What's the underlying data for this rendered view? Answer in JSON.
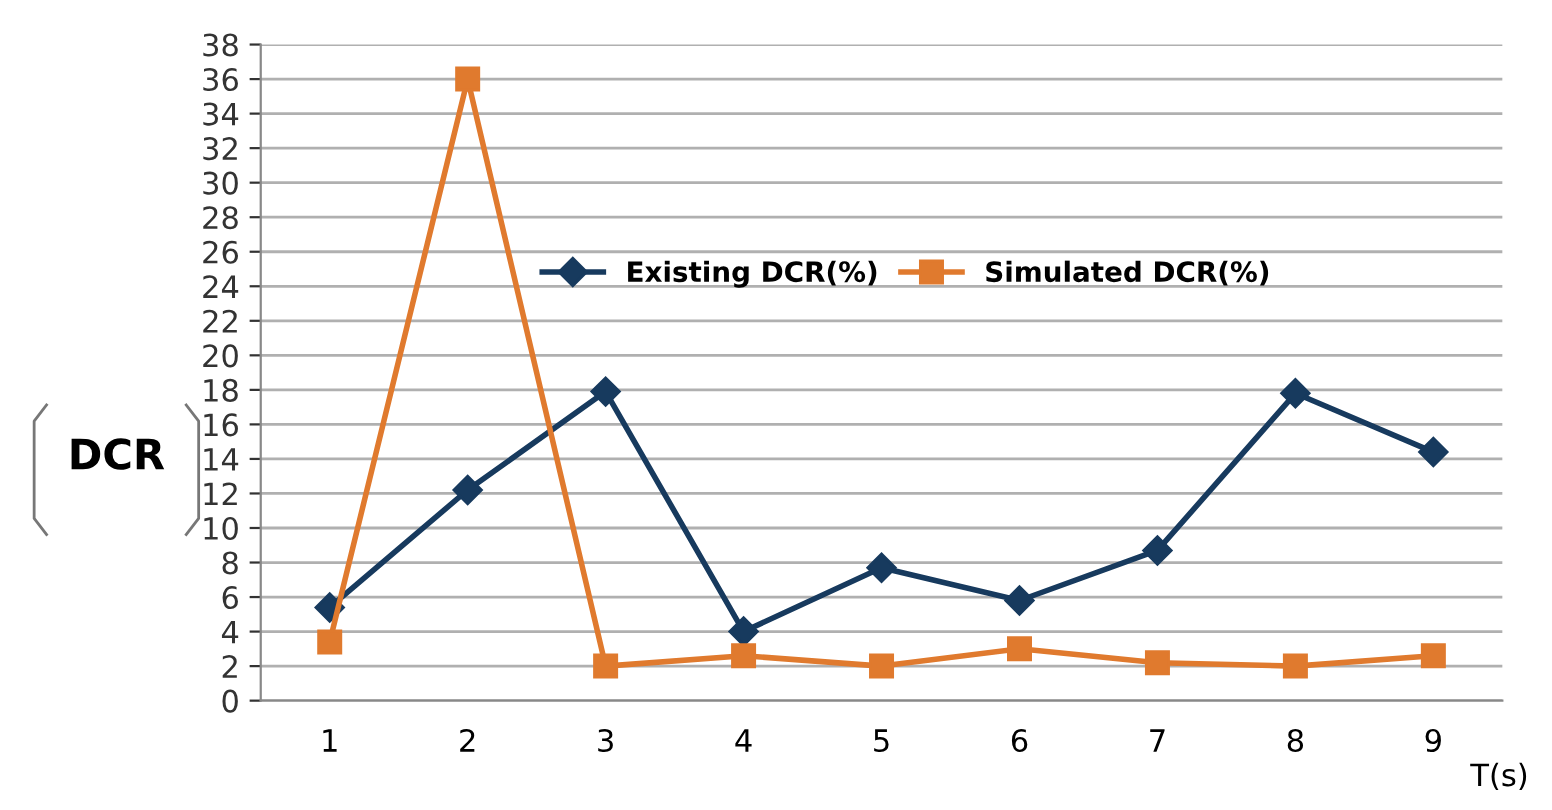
{
  "chart_data": {
    "type": "line",
    "xlabel": "T(s)",
    "ylabel": "DCR",
    "categories": [
      "1",
      "2",
      "3",
      "4",
      "5",
      "6",
      "7",
      "8",
      "9"
    ],
    "series": [
      {
        "name": "Existing DCR(%)",
        "color": "#173a5e",
        "marker": "diamond",
        "values": [
          5.4,
          12.2,
          17.9,
          4.0,
          7.7,
          5.8,
          8.7,
          17.8,
          14.4
        ]
      },
      {
        "name": "Simulated DCR(%)",
        "color": "#e07a2e",
        "marker": "square",
        "values": [
          3.4,
          36,
          2.0,
          2.6,
          2.0,
          3.0,
          2.2,
          2.0,
          2.6
        ]
      }
    ],
    "ylim": [
      0,
      38
    ],
    "yticks": [
      0,
      2,
      4,
      6,
      8,
      10,
      12,
      14,
      16,
      18,
      20,
      22,
      24,
      26,
      28,
      30,
      32,
      34,
      36,
      38
    ],
    "grid": "y",
    "legend": "center",
    "line_style": "solid"
  }
}
